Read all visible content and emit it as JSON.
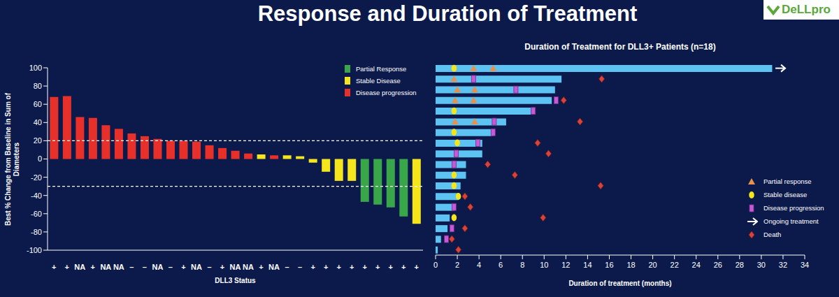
{
  "title": "Response and Duration of Treatment",
  "logo": "DeLLpro",
  "chart_data": [
    {
      "type": "bar",
      "x_label": "DLL3 Status",
      "y_label": "Best % Change from Baseline in Sum of Diameters",
      "categories": [
        "+",
        "+",
        "NA",
        "+",
        "NA",
        "NA",
        "–",
        "–",
        "NA",
        "–",
        "+",
        "NA",
        "–",
        "+",
        "NA",
        "NA",
        "+",
        "NA",
        "–",
        "–",
        "+",
        "+",
        "+",
        "+",
        "+",
        "+",
        "+",
        "+",
        "+"
      ],
      "values": [
        68,
        69,
        46,
        45,
        37,
        33,
        28,
        25,
        22,
        20,
        20,
        19,
        15,
        12,
        9,
        6,
        5,
        4,
        4,
        3,
        -4,
        -14,
        -24,
        -24,
        -47,
        -50,
        -53,
        -63,
        -71
      ],
      "colors": [
        "#e8302a",
        "#e8302a",
        "#e8302a",
        "#e8302a",
        "#e8302a",
        "#e8302a",
        "#e8302a",
        "#e8302a",
        "#e8302a",
        "#e8302a",
        "#e8302a",
        "#e8302a",
        "#e8302a",
        "#e8302a",
        "#e8302a",
        "#e8302a",
        "#f4e51c",
        "#e8302a",
        "#f4e51c",
        "#f4e51c",
        "#f4e51c",
        "#f4e51c",
        "#f4e51c",
        "#f4e51c",
        "#3aa64a",
        "#3aa64a",
        "#3aa64a",
        "#3aa64a",
        "#f4e51c"
      ],
      "ylim": [
        -100,
        100
      ],
      "yticks": [
        -100,
        -80,
        -60,
        -40,
        -20,
        0,
        20,
        40,
        60,
        80,
        100
      ],
      "reference_lines": [
        20,
        -30
      ],
      "grid": false,
      "legend": "top-right",
      "legend_items": [
        {
          "name": "Partial Response",
          "color": "#3aa64a"
        },
        {
          "name": "Stable Disease",
          "color": "#f4e51c"
        },
        {
          "name": "Disease progression",
          "color": "#e8302a"
        }
      ]
    },
    {
      "type": "bar",
      "orientation": "horizontal",
      "title": "Duration of Treatment for DLL3+ Patients (n=18)",
      "x_label": "Duration of treatment (months)",
      "values": [
        31,
        11.6,
        11.0,
        10.7,
        8.8,
        6.5,
        5.3,
        4.3,
        4.3,
        2.8,
        2.8,
        2.3,
        2.1,
        1.7,
        1.3,
        1.1,
        0.5,
        0.2
      ],
      "color": "#5cc3f2",
      "xlim": [
        0,
        34
      ],
      "xticks": [
        0,
        2,
        4,
        6,
        8,
        10,
        12,
        14,
        16,
        18,
        20,
        22,
        24,
        26,
        28,
        30,
        32,
        34
      ],
      "tick_labels": "x",
      "grid": false,
      "legend": "bottom-right",
      "series": [
        {
          "name": "Partial response",
          "type": "scatter",
          "marker": "triangle",
          "color": "#e8904e",
          "values": [
            [
              3.5,
              5.3
            ],
            [
              1.7
            ],
            [
              2.0,
              3.6
            ],
            [
              1.8,
              3.5
            ],
            [],
            [
              1.8,
              3.6
            ],
            [],
            [],
            [],
            [],
            [],
            [],
            [],
            [],
            [],
            [],
            [],
            []
          ]
        },
        {
          "name": "Stable disease",
          "type": "scatter",
          "marker": "circle",
          "color": "#f4e51c",
          "values": [
            [
              1.7
            ],
            [],
            [],
            [],
            [
              1.7
            ],
            [],
            [
              1.7
            ],
            [
              2.0
            ],
            [],
            [],
            [
              1.7
            ],
            [
              1.7
            ],
            [
              2.1
            ],
            [],
            [
              1.7
            ],
            [],
            [],
            []
          ]
        },
        {
          "name": "Disease progression",
          "type": "scatter",
          "marker": "square",
          "color": "#c45ad6",
          "values": [
            [],
            [
              3.5
            ],
            [
              7.4
            ],
            [
              11.1
            ],
            [
              9.0
            ],
            [
              5.4
            ],
            [
              5.3
            ],
            [
              3.9
            ],
            [
              1.9
            ],
            [
              1.7
            ],
            [],
            [],
            [],
            [
              1.7
            ],
            [],
            [
              1.5
            ],
            [
              1.0
            ],
            []
          ]
        },
        {
          "name": "Ongoing treatment",
          "type": "scatter",
          "marker": "arrow",
          "color": "#ffffff",
          "values": [
            [
              32.2
            ],
            [],
            [],
            [],
            [],
            [],
            [],
            [],
            [],
            [],
            [],
            [],
            [],
            [],
            [],
            [],
            [],
            []
          ]
        },
        {
          "name": "Death",
          "type": "scatter",
          "marker": "diamond",
          "color": "#d9443a",
          "values": [
            [],
            [
              15.3
            ],
            [],
            [
              11.8
            ],
            [],
            [
              13.3
            ],
            [],
            [
              9.4
            ],
            [
              10.4
            ],
            [
              4.8
            ],
            [
              7.3
            ],
            [
              15.2
            ],
            [
              2.7
            ],
            [
              3.2
            ],
            [
              9.9
            ],
            [
              2.7
            ],
            [
              1.5
            ],
            [
              2.1
            ]
          ]
        }
      ]
    }
  ]
}
